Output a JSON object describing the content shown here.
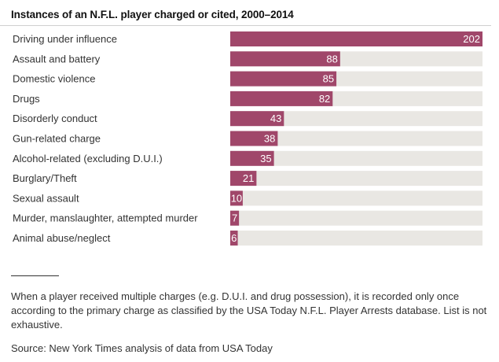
{
  "chart_data": {
    "type": "bar",
    "orientation": "horizontal",
    "title": "Instances of an N.F.L. player charged or cited, 2000–2014",
    "categories": [
      "Driving under influence",
      "Assault and battery",
      "Domestic violence",
      "Drugs",
      "Disorderly conduct",
      "Gun-related charge",
      "Alcohol-related (excluding D.U.I.)",
      "Burglary/Theft",
      "Sexual assault",
      "Murder, manslaughter, attempted murder",
      "Animal abuse/neglect"
    ],
    "values": [
      202,
      88,
      85,
      82,
      43,
      38,
      35,
      21,
      10,
      7,
      6
    ],
    "xlim": [
      0,
      202
    ],
    "grid": false,
    "colors": {
      "bar": "#a0476a",
      "track": "#e9e7e3",
      "label_inside": "#ffffff",
      "label_outside": "#333333"
    }
  },
  "footnote": "When a player received multiple charges (e.g. D.U.I. and drug possession), it is recorded only once according to the primary charge as classified by the USA Today N.F.L. Player Arrests database. List is not exhaustive.",
  "source": "Source: New York Times analysis of data from USA Today"
}
